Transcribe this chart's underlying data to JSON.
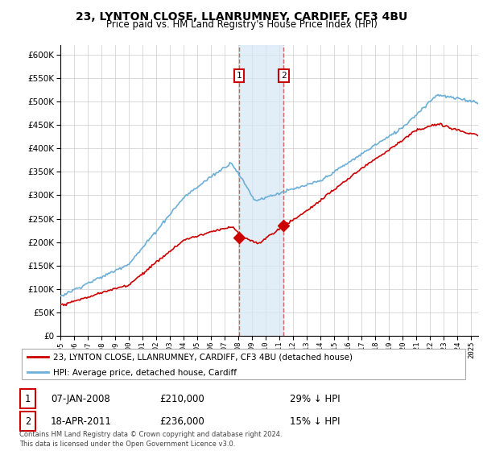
{
  "title": "23, LYNTON CLOSE, LLANRUMNEY, CARDIFF, CF3 4BU",
  "subtitle": "Price paid vs. HM Land Registry's House Price Index (HPI)",
  "legend_line1": "23, LYNTON CLOSE, LLANRUMNEY, CARDIFF, CF3 4BU (detached house)",
  "legend_line2": "HPI: Average price, detached house, Cardiff",
  "annotation1_date": "07-JAN-2008",
  "annotation1_price": "£210,000",
  "annotation1_hpi": "29% ↓ HPI",
  "annotation2_date": "18-APR-2011",
  "annotation2_price": "£236,000",
  "annotation2_hpi": "15% ↓ HPI",
  "footer": "Contains HM Land Registry data © Crown copyright and database right 2024.\nThis data is licensed under the Open Government Licence v3.0.",
  "hpi_color": "#6baed6",
  "price_color": "#cc0000",
  "vline_color": "#cc6666",
  "shade_color": "#d6e8f5",
  "ylim": [
    0,
    620000
  ],
  "yticks": [
    0,
    50000,
    100000,
    150000,
    200000,
    250000,
    300000,
    350000,
    400000,
    450000,
    500000,
    550000,
    600000
  ],
  "background_color": "#ffffff",
  "grid_color": "#cccccc",
  "sale1_x": 2008.03,
  "sale1_y": 210000,
  "sale2_x": 2011.3,
  "sale2_y": 236000,
  "xmin": 1995,
  "xmax": 2025.5
}
